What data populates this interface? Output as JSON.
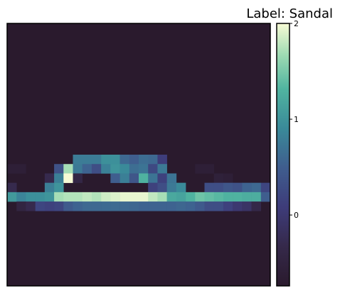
{
  "chart_data": {
    "type": "heatmap",
    "title": "Label: Sandal",
    "xlabel": "",
    "ylabel": "",
    "grid": false,
    "rows": 28,
    "cols": 28,
    "colormap": "mako",
    "colorbar": {
      "vmin": -0.74,
      "vmax": 2.0,
      "ticks": [
        0,
        1,
        2
      ],
      "tick_labels": [
        "0",
        "1",
        "2"
      ],
      "stops": [
        [
          0.0,
          "#2a1a2d"
        ],
        [
          0.15,
          "#35294a"
        ],
        [
          0.3,
          "#3e3c7a"
        ],
        [
          0.45,
          "#3f5d8e"
        ],
        [
          0.6,
          "#3a8a99"
        ],
        [
          0.75,
          "#50b4a0"
        ],
        [
          0.88,
          "#9edbb3"
        ],
        [
          1.0,
          "#f7fbd5"
        ]
      ]
    },
    "background_value": -0.74,
    "cells": [
      [
        14,
        7,
        0.78
      ],
      [
        14,
        8,
        0.78
      ],
      [
        14,
        9,
        0.78
      ],
      [
        14,
        10,
        0.96
      ],
      [
        14,
        11,
        0.96
      ],
      [
        14,
        12,
        0.6
      ],
      [
        14,
        13,
        0.5
      ],
      [
        14,
        14,
        0.64
      ],
      [
        14,
        15,
        0.6
      ],
      [
        14,
        16,
        0.1
      ],
      [
        15,
        0,
        -0.6
      ],
      [
        15,
        1,
        -0.6
      ],
      [
        15,
        5,
        0.35
      ],
      [
        15,
        6,
        1.7
      ],
      [
        15,
        7,
        0.75
      ],
      [
        15,
        8,
        0.55
      ],
      [
        15,
        9,
        0.3
      ],
      [
        15,
        10,
        0.82
      ],
      [
        15,
        11,
        1.0
      ],
      [
        15,
        12,
        0.9
      ],
      [
        15,
        13,
        0.65
      ],
      [
        15,
        14,
        0.7
      ],
      [
        15,
        15,
        0.25
      ],
      [
        15,
        16,
        0.75
      ],
      [
        15,
        20,
        -0.6
      ],
      [
        15,
        21,
        -0.6
      ],
      [
        16,
        4,
        -0.3
      ],
      [
        16,
        5,
        0.8
      ],
      [
        16,
        6,
        2.0
      ],
      [
        16,
        7,
        -0.4
      ],
      [
        16,
        11,
        0.5
      ],
      [
        16,
        12,
        0.8
      ],
      [
        16,
        13,
        0.4
      ],
      [
        16,
        14,
        1.3
      ],
      [
        16,
        15,
        0.7
      ],
      [
        16,
        16,
        0.15
      ],
      [
        16,
        17,
        0.7
      ],
      [
        16,
        22,
        -0.55
      ],
      [
        16,
        23,
        -0.6
      ],
      [
        17,
        0,
        -0.3
      ],
      [
        17,
        4,
        0.8
      ],
      [
        17,
        5,
        1.0
      ],
      [
        17,
        15,
        0.15
      ],
      [
        17,
        16,
        0.3
      ],
      [
        17,
        17,
        0.75
      ],
      [
        17,
        18,
        0.9
      ],
      [
        17,
        21,
        0.3
      ],
      [
        17,
        22,
        0.3
      ],
      [
        17,
        23,
        0.4
      ],
      [
        17,
        24,
        0.35
      ],
      [
        17,
        25,
        0.55
      ],
      [
        17,
        26,
        0.6
      ],
      [
        17,
        27,
        0.2
      ],
      [
        18,
        0,
        1.05
      ],
      [
        18,
        1,
        0.85
      ],
      [
        18,
        2,
        0.95
      ],
      [
        18,
        3,
        0.95
      ],
      [
        18,
        4,
        1.0
      ],
      [
        18,
        5,
        1.7
      ],
      [
        18,
        6,
        1.75
      ],
      [
        18,
        7,
        1.75
      ],
      [
        18,
        8,
        1.8
      ],
      [
        18,
        9,
        1.75
      ],
      [
        18,
        10,
        1.85
      ],
      [
        18,
        11,
        1.9
      ],
      [
        18,
        12,
        1.95
      ],
      [
        18,
        13,
        1.95
      ],
      [
        18,
        14,
        1.95
      ],
      [
        18,
        15,
        1.8
      ],
      [
        18,
        16,
        1.7
      ],
      [
        18,
        17,
        1.2
      ],
      [
        18,
        18,
        1.15
      ],
      [
        18,
        19,
        1.3
      ],
      [
        18,
        20,
        1.45
      ],
      [
        18,
        21,
        1.4
      ],
      [
        18,
        22,
        1.35
      ],
      [
        18,
        23,
        1.3
      ],
      [
        18,
        24,
        1.3
      ],
      [
        18,
        25,
        1.25
      ],
      [
        18,
        26,
        1.25
      ],
      [
        18,
        27,
        0.5
      ],
      [
        19,
        1,
        -0.45
      ],
      [
        19,
        2,
        -0.3
      ],
      [
        19,
        3,
        0.2
      ],
      [
        19,
        4,
        0.15
      ],
      [
        19,
        5,
        0.2
      ],
      [
        19,
        6,
        0.45
      ],
      [
        19,
        7,
        0.55
      ],
      [
        19,
        8,
        0.6
      ],
      [
        19,
        9,
        0.6
      ],
      [
        19,
        10,
        0.62
      ],
      [
        19,
        11,
        0.62
      ],
      [
        19,
        12,
        0.6
      ],
      [
        19,
        13,
        0.58
      ],
      [
        19,
        14,
        0.55
      ],
      [
        19,
        15,
        0.55
      ],
      [
        19,
        16,
        0.55
      ],
      [
        19,
        17,
        0.55
      ],
      [
        19,
        18,
        0.58
      ],
      [
        19,
        19,
        0.55
      ],
      [
        19,
        20,
        0.45
      ],
      [
        19,
        21,
        0.3
      ],
      [
        19,
        22,
        0.3
      ],
      [
        19,
        23,
        0.15
      ],
      [
        19,
        24,
        0.0
      ],
      [
        19,
        25,
        -0.1
      ],
      [
        19,
        26,
        -0.35
      ]
    ]
  }
}
